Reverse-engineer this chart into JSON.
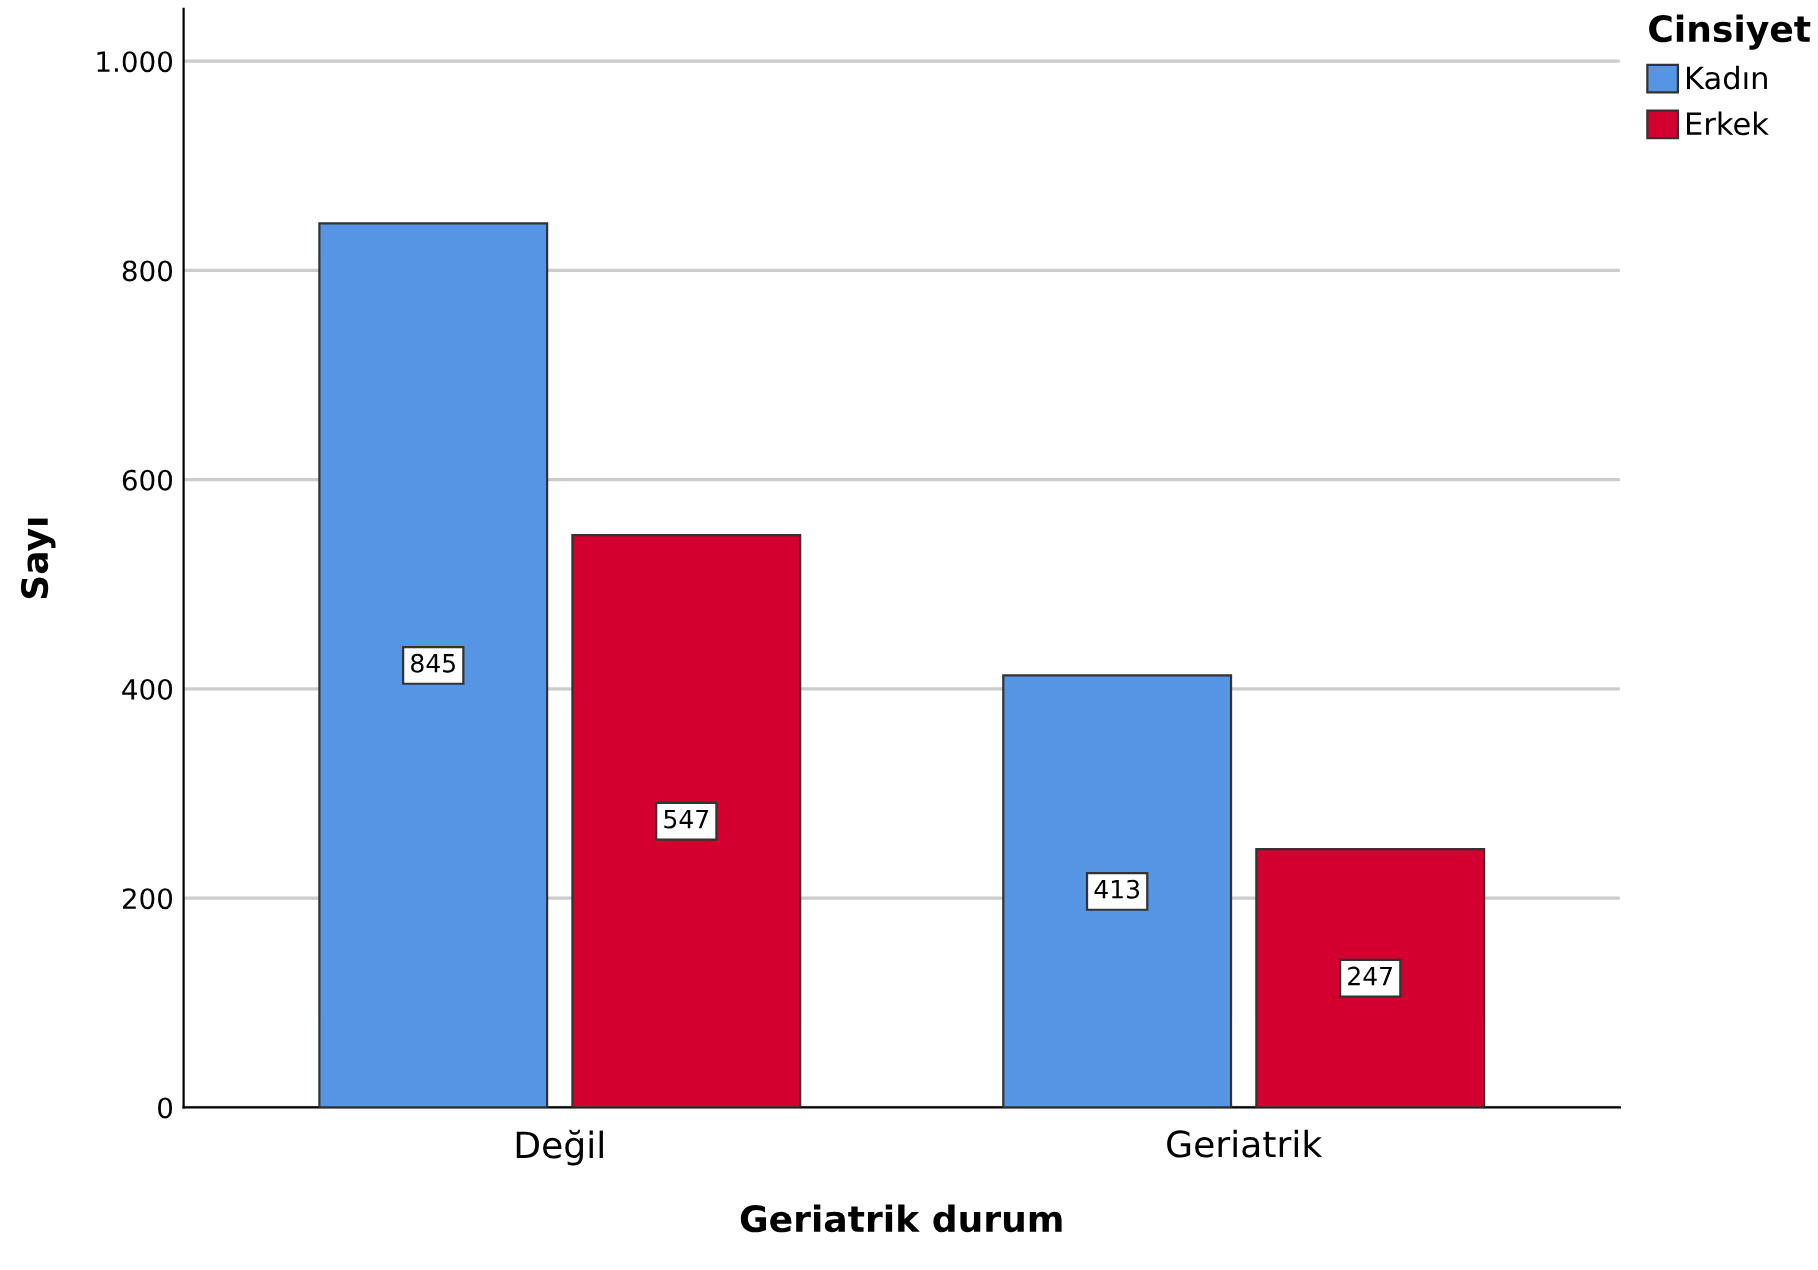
{
  "chart_data": {
    "type": "bar",
    "xlabel": "Geriatrik durum",
    "ylabel": "Sayı",
    "legend_title": "Cinsiyet",
    "categories": [
      "Değil",
      "Geriatrik"
    ],
    "series": [
      {
        "name": "Kadın",
        "color": "#5595e3",
        "values": [
          845,
          413
        ]
      },
      {
        "name": "Erkek",
        "color": "#d3002f",
        "values": [
          547,
          247
        ]
      }
    ],
    "ylim": [
      0,
      1050
    ],
    "yticks": [
      0,
      200,
      400,
      600,
      800,
      {
        "value": 1000,
        "label": "1.000"
      }
    ],
    "grid": "y",
    "legend": "top right",
    "data_labels": true
  }
}
